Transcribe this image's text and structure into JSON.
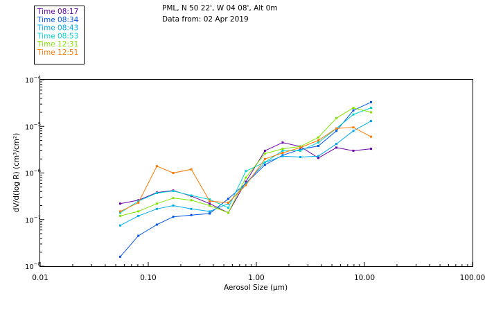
{
  "chart_data": {
    "type": "line",
    "title": "PML, N 50 22', W 04 08', Alt 0m",
    "subtitle": "Data from: 02 Apr 2019",
    "xlabel": "Aerosol Size (µm)",
    "ylabel": "dV/d(log R) (cm³/cm²)",
    "xscale": "log",
    "yscale": "log",
    "xlim": [
      0.01,
      100
    ],
    "ylim": [
      1e-08,
      0.0001
    ],
    "grid": false,
    "legend_position": "top-left",
    "xticks": [
      {
        "value": 0.01,
        "label": "0.01"
      },
      {
        "value": 0.1,
        "label": "0.10"
      },
      {
        "value": 1,
        "label": "1.00"
      },
      {
        "value": 10,
        "label": "10.00"
      },
      {
        "value": 100,
        "label": "100.00"
      }
    ],
    "yticks": [
      {
        "value": 1e-08,
        "mantissa": "10",
        "exponent": "−8"
      },
      {
        "value": 1e-07,
        "mantissa": "10",
        "exponent": "−7"
      },
      {
        "value": 1e-06,
        "mantissa": "10",
        "exponent": "−6"
      },
      {
        "value": 1e-05,
        "mantissa": "10",
        "exponent": "−5"
      },
      {
        "value": 0.0001,
        "mantissa": "10",
        "exponent": "−4"
      }
    ],
    "x": [
      0.055,
      0.081,
      0.12,
      0.17,
      0.25,
      0.37,
      0.55,
      0.8,
      1.2,
      1.75,
      2.55,
      3.75,
      5.5,
      7.9,
      11.5
    ],
    "series": [
      {
        "name": "Time 08:17",
        "color": "#6a00a8",
        "values": [
          2.2e-07,
          2.6e-07,
          3.8e-07,
          4.2e-07,
          3.2e-07,
          2.2e-07,
          1.4e-07,
          6.5e-07,
          3e-06,
          4.5e-06,
          3.7e-06,
          2.1e-06,
          3.5e-06,
          3e-06,
          3.3e-06
        ]
      },
      {
        "name": "Time 08:34",
        "color": "#0055e8",
        "values": [
          1.6e-08,
          4.5e-08,
          7.8e-08,
          1.15e-07,
          1.25e-07,
          1.35e-07,
          2.8e-07,
          6e-07,
          1.5e-06,
          2.4e-06,
          3.2e-06,
          3.8e-06,
          8e-06,
          2.2e-05,
          3.3e-05
        ]
      },
      {
        "name": "Time 08:43",
        "color": "#00aaf0",
        "values": [
          7.5e-08,
          1.2e-07,
          1.7e-07,
          2e-07,
          1.7e-07,
          1.5e-07,
          2.2e-07,
          6e-07,
          1.7e-06,
          2.3e-06,
          2.2e-06,
          2.3e-06,
          4.2e-06,
          8e-06,
          1.3e-05
        ]
      },
      {
        "name": "Time 08:53",
        "color": "#00d2d2",
        "values": [
          1.4e-07,
          2.5e-07,
          3.7e-07,
          4.1e-07,
          3.3e-07,
          2.7e-07,
          1.8e-07,
          1.1e-06,
          1.7e-06,
          3e-06,
          3e-06,
          4.5e-06,
          9e-06,
          1.8e-05,
          2.5e-05
        ]
      },
      {
        "name": "Time 12:31",
        "color": "#80e600",
        "values": [
          1.2e-07,
          1.5e-07,
          2.2e-07,
          2.9e-07,
          2.6e-07,
          2e-07,
          1.4e-07,
          8e-07,
          2.6e-06,
          3.3e-06,
          3.7e-06,
          5.8e-06,
          1.5e-05,
          2.5e-05,
          2e-05
        ]
      },
      {
        "name": "Time 12:51",
        "color": "#ff7800",
        "values": [
          1.5e-07,
          2.3e-07,
          1.4e-06,
          1e-06,
          1.2e-06,
          2.5e-07,
          2.3e-07,
          5.5e-07,
          2e-06,
          2.7e-06,
          3.5e-06,
          5e-06,
          9e-06,
          9.5e-06,
          6e-06
        ]
      }
    ]
  }
}
